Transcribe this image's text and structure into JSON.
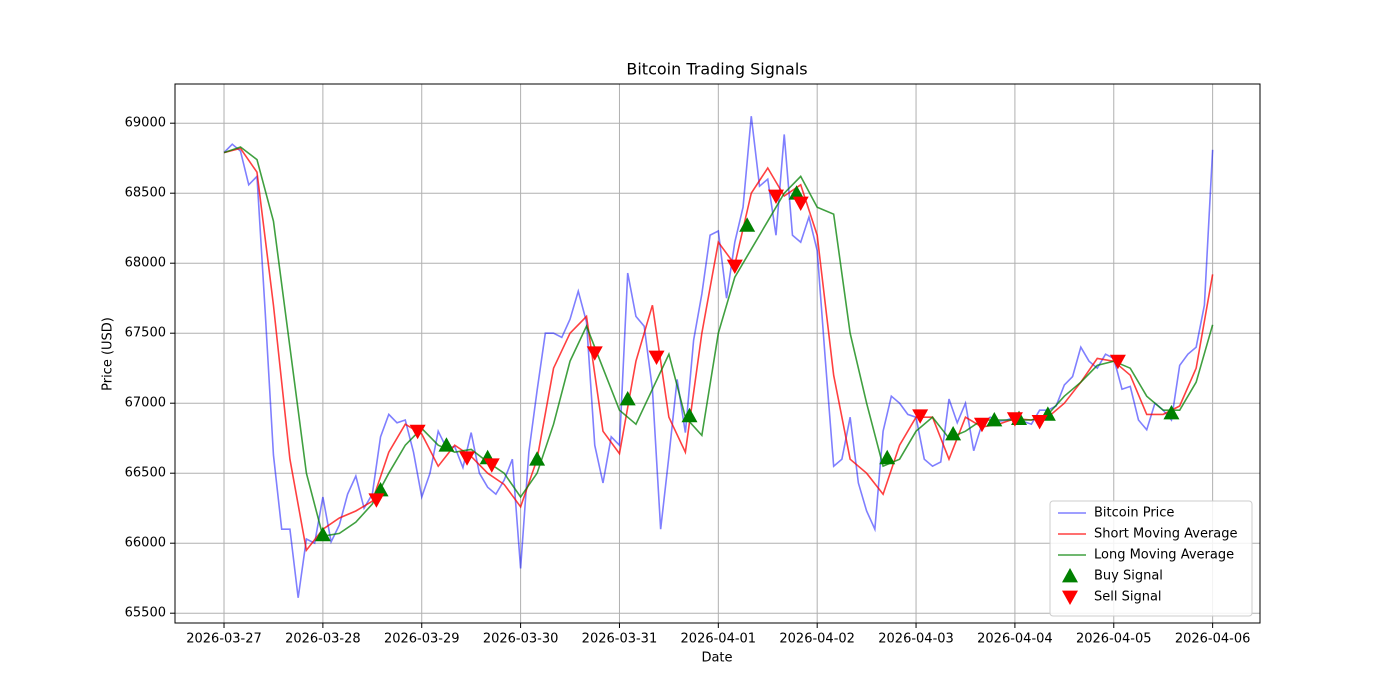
{
  "chart_data": {
    "type": "line",
    "title": "Bitcoin Trading Signals",
    "x_label": "Date",
    "y_label": "Price (USD)",
    "xlim": [
      -11.9,
      251.5
    ],
    "ylim": [
      65430,
      69280
    ],
    "xticks": [
      {
        "value": 0,
        "label": "2026-03-27"
      },
      {
        "value": 24,
        "label": "2026-03-28"
      },
      {
        "value": 48,
        "label": "2026-03-29"
      },
      {
        "value": 72,
        "label": "2026-03-30"
      },
      {
        "value": 96,
        "label": "2026-03-31"
      },
      {
        "value": 120,
        "label": "2026-04-01"
      },
      {
        "value": 144,
        "label": "2026-04-02"
      },
      {
        "value": 168,
        "label": "2026-04-03"
      },
      {
        "value": 192,
        "label": "2026-04-04"
      },
      {
        "value": 216,
        "label": "2026-04-05"
      },
      {
        "value": 240,
        "label": "2026-04-06"
      }
    ],
    "yticks": [
      65500,
      66000,
      66500,
      67000,
      67500,
      68000,
      68500,
      69000
    ],
    "grid": true,
    "legend": "lower right",
    "series": [
      {
        "name": "Bitcoin Price",
        "type": "line",
        "color": "#0000ff",
        "opacity": 0.5,
        "x": [
          0,
          2,
          4,
          6,
          8,
          10,
          12,
          14,
          16,
          18,
          20,
          22,
          24,
          26,
          28,
          30,
          32,
          34,
          36,
          38,
          40,
          42,
          44,
          46,
          48,
          50,
          52,
          54,
          56,
          58,
          60,
          62,
          64,
          66,
          68,
          70,
          72,
          74,
          76,
          78,
          80,
          82,
          84,
          86,
          88,
          90,
          92,
          94,
          96,
          98,
          100,
          102,
          104,
          106,
          108,
          110,
          112,
          114,
          116,
          118,
          120,
          122,
          124,
          126,
          128,
          130,
          132,
          134,
          136,
          138,
          140,
          142,
          144,
          146,
          148,
          150,
          152,
          154,
          156,
          158,
          160,
          162,
          164,
          166,
          168,
          170,
          172,
          174,
          176,
          178,
          180,
          182,
          184,
          186,
          188,
          190,
          192,
          194,
          196,
          198,
          200,
          202,
          204,
          206,
          208,
          210,
          212,
          214,
          216,
          218,
          220,
          222,
          224,
          226,
          228,
          230,
          232,
          234,
          236,
          238,
          240
        ],
        "values": [
          68790,
          68850,
          68800,
          68560,
          68620,
          67650,
          66630,
          66100,
          66100,
          65610,
          66030,
          66000,
          66330,
          66010,
          66130,
          66350,
          66480,
          66250,
          66350,
          66760,
          66920,
          66860,
          66880,
          66650,
          66330,
          66500,
          66800,
          66680,
          66690,
          66540,
          66790,
          66500,
          66400,
          66350,
          66450,
          66600,
          65820,
          66650,
          67090,
          67500,
          67500,
          67470,
          67600,
          67800,
          67580,
          66700,
          66430,
          66760,
          66700,
          67930,
          67620,
          67550,
          67100,
          66100,
          66620,
          67170,
          66790,
          67450,
          67780,
          68200,
          68230,
          67750,
          68150,
          68400,
          69050,
          68550,
          68600,
          68200,
          68920,
          68200,
          68150,
          68330,
          68090,
          67300,
          66550,
          66600,
          66900,
          66430,
          66230,
          66100,
          66800,
          67050,
          67000,
          66920,
          66900,
          66600,
          66550,
          66580,
          67030,
          66860,
          67000,
          66660,
          66850,
          66900,
          66870,
          66880,
          66900,
          66870,
          66850,
          66950,
          66950,
          66980,
          67130,
          67190,
          67400,
          67300,
          67250,
          67350,
          67320,
          67100,
          67120,
          66880,
          66810,
          67000,
          66950,
          66880,
          67270,
          67350,
          67400,
          67700,
          68810
        ]
      },
      {
        "name": "Short Moving Average",
        "type": "line",
        "color": "#ff0000",
        "opacity": 0.75,
        "x": [
          0,
          4,
          8,
          12,
          16,
          20,
          24,
          28,
          32,
          36,
          40,
          44,
          48,
          52,
          56,
          60,
          64,
          68,
          72,
          76,
          80,
          84,
          88,
          92,
          96,
          100,
          104,
          108,
          112,
          116,
          120,
          124,
          128,
          132,
          136,
          140,
          144,
          148,
          152,
          156,
          160,
          164,
          168,
          172,
          176,
          180,
          184,
          188,
          192,
          196,
          200,
          204,
          208,
          212,
          216,
          220,
          224,
          228,
          232,
          236,
          240
        ],
        "values": [
          68790,
          68820,
          68650,
          67700,
          66600,
          65950,
          66100,
          66180,
          66230,
          66300,
          66650,
          66850,
          66780,
          66550,
          66700,
          66620,
          66500,
          66420,
          66260,
          66600,
          67250,
          67500,
          67620,
          66800,
          66640,
          67300,
          67700,
          66900,
          66650,
          67500,
          68150,
          67990,
          68500,
          68680,
          68480,
          68560,
          68200,
          67200,
          66600,
          66500,
          66350,
          66700,
          66900,
          66900,
          66600,
          66900,
          66830,
          66850,
          66890,
          66880,
          66900,
          67000,
          67150,
          67320,
          67300,
          67200,
          66920,
          66920,
          66980,
          67250,
          67920
        ]
      },
      {
        "name": "Long Moving Average",
        "type": "line",
        "color": "#008000",
        "opacity": 0.75,
        "x": [
          0,
          4,
          8,
          12,
          16,
          20,
          24,
          28,
          32,
          36,
          40,
          44,
          48,
          52,
          56,
          60,
          64,
          68,
          72,
          76,
          80,
          84,
          88,
          92,
          96,
          100,
          104,
          108,
          112,
          116,
          120,
          124,
          128,
          132,
          136,
          140,
          144,
          148,
          152,
          156,
          160,
          164,
          168,
          172,
          176,
          180,
          184,
          188,
          192,
          196,
          200,
          204,
          208,
          212,
          216,
          220,
          224,
          228,
          232,
          236,
          240
        ],
        "values": [
          68790,
          68830,
          68740,
          68300,
          67400,
          66500,
          66050,
          66070,
          66150,
          66280,
          66500,
          66700,
          66820,
          66700,
          66650,
          66670,
          66580,
          66500,
          66330,
          66500,
          66850,
          67300,
          67550,
          67250,
          66950,
          66850,
          67100,
          67350,
          66900,
          66770,
          67500,
          67900,
          68100,
          68300,
          68500,
          68620,
          68400,
          68350,
          67500,
          67000,
          66550,
          66600,
          66800,
          66900,
          66750,
          66800,
          66880,
          66880,
          66880,
          66880,
          66920,
          67050,
          67150,
          67270,
          67300,
          67250,
          67050,
          66950,
          66950,
          67150,
          67560
        ]
      },
      {
        "name": "Buy Signal",
        "type": "scatter",
        "marker": "triangle-up",
        "color": "#008000",
        "x": [
          24,
          38,
          54,
          64,
          76,
          98,
          113,
          127,
          139,
          161,
          177,
          187,
          193,
          200,
          230
        ],
        "values": [
          66060,
          66380,
          66700,
          66610,
          66600,
          67030,
          66910,
          68270,
          68500,
          66610,
          66780,
          66880,
          66890,
          66920,
          66930
        ]
      },
      {
        "name": "Sell Signal",
        "type": "scatter",
        "marker": "triangle-down",
        "color": "#ff0000",
        "x": [
          37,
          47,
          59,
          65,
          90,
          105,
          124,
          134,
          140,
          169,
          184,
          192,
          198,
          217
        ],
        "values": [
          66310,
          66800,
          66610,
          66560,
          67360,
          67330,
          67980,
          68480,
          68430,
          66910,
          66850,
          66890,
          66870,
          67300
        ]
      }
    ]
  }
}
